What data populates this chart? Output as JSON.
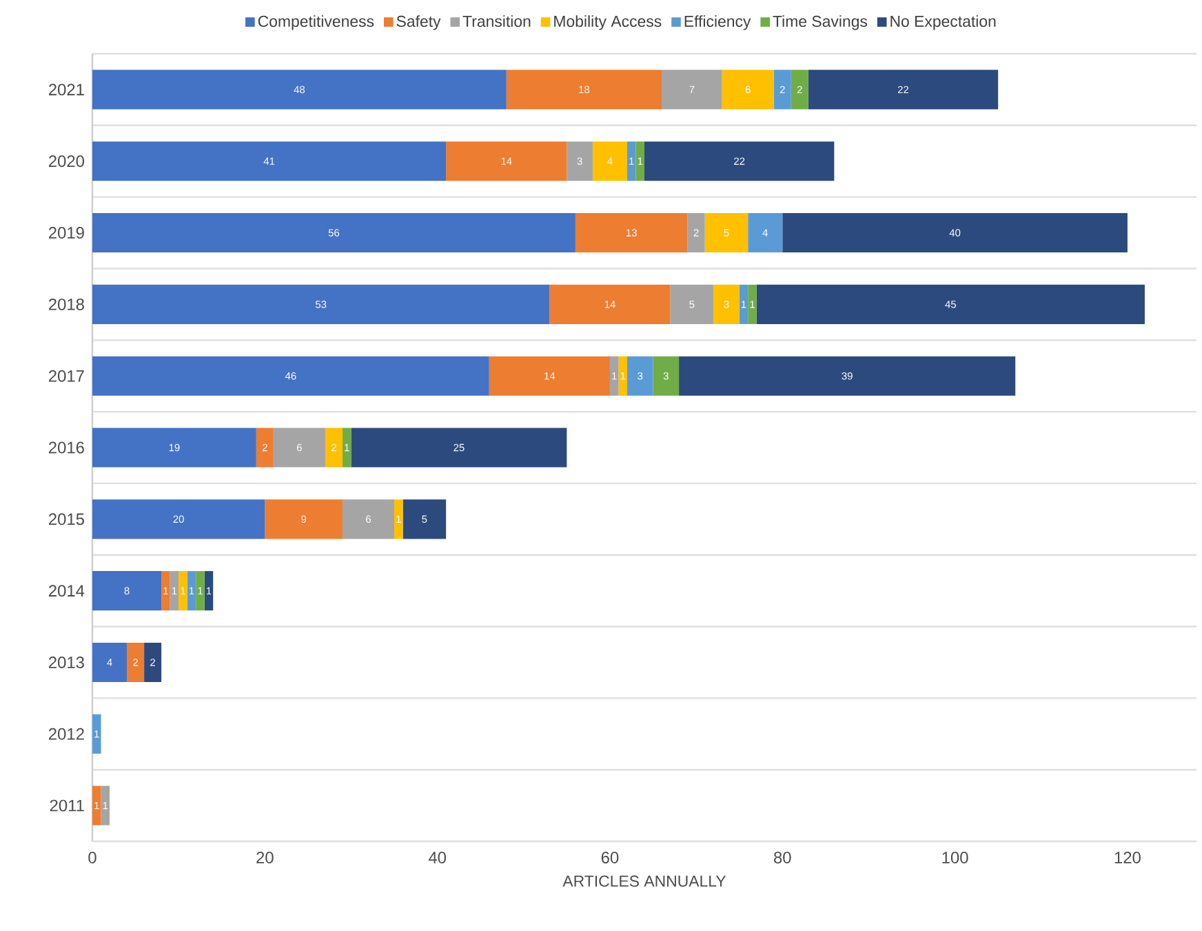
{
  "chart_data": {
    "type": "bar",
    "orientation": "horizontal",
    "stacked": true,
    "xlabel": "ARTICLES ANNUALLY",
    "categories": [
      "2021",
      "2020",
      "2019",
      "2018",
      "2017",
      "2016",
      "2015",
      "2014",
      "2013",
      "2012",
      "2011"
    ],
    "series": [
      {
        "name": "Competitiveness",
        "color": "#4472c4",
        "values": [
          48,
          41,
          56,
          53,
          46,
          19,
          20,
          8,
          4,
          null,
          null
        ]
      },
      {
        "name": "Safety",
        "color": "#ed7d31",
        "values": [
          18,
          14,
          13,
          14,
          14,
          2,
          9,
          1,
          2,
          null,
          1
        ]
      },
      {
        "name": "Transition",
        "color": "#a5a5a5",
        "values": [
          7,
          3,
          2,
          5,
          1,
          6,
          6,
          1,
          null,
          null,
          1
        ]
      },
      {
        "name": "Mobility Access",
        "color": "#ffc000",
        "values": [
          6,
          4,
          5,
          3,
          1,
          2,
          1,
          1,
          null,
          null,
          null
        ]
      },
      {
        "name": "Efficiency",
        "color": "#5b9bd5",
        "values": [
          2,
          1,
          4,
          1,
          3,
          null,
          null,
          1,
          null,
          1,
          null
        ]
      },
      {
        "name": "Time Savings",
        "color": "#70ad47",
        "values": [
          2,
          1,
          null,
          1,
          3,
          1,
          null,
          1,
          null,
          null,
          null
        ]
      },
      {
        "name": "No Expectation",
        "color": "#2c4a7e",
        "values": [
          22,
          22,
          40,
          45,
          39,
          25,
          5,
          1,
          2,
          null,
          null
        ]
      }
    ],
    "xlim": [
      0,
      128
    ],
    "xticks": [
      0,
      20,
      40,
      60,
      80,
      100,
      120
    ],
    "grid": "y",
    "legend": "top",
    "data_labels": true
  }
}
